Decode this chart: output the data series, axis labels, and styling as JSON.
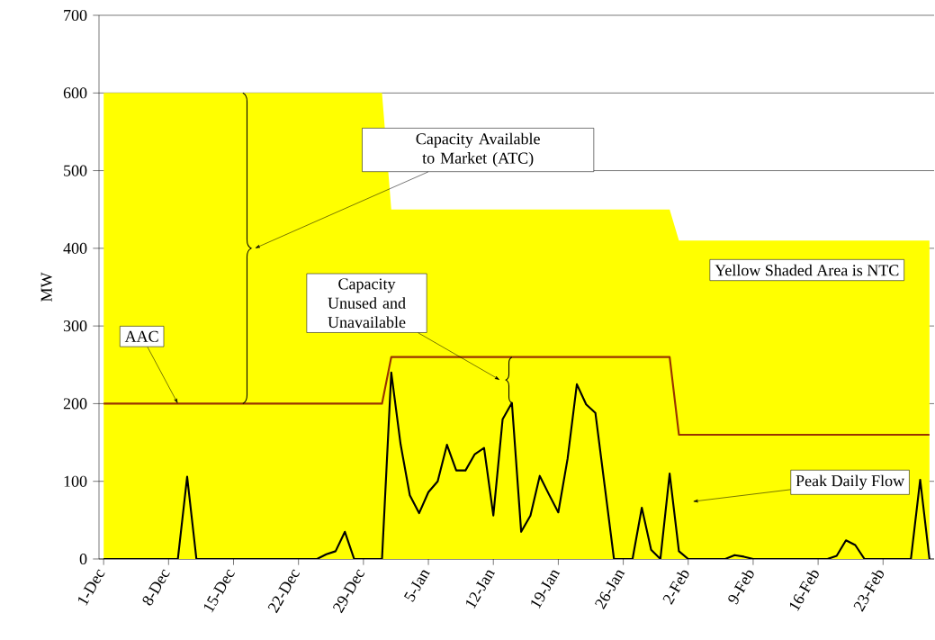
{
  "chart_data": {
    "type": "line",
    "ylabel": "MW",
    "categories": [
      "1-Dec",
      null,
      null,
      null,
      null,
      null,
      null,
      "8-Dec",
      null,
      null,
      null,
      null,
      null,
      null,
      "15-Dec",
      null,
      null,
      null,
      null,
      null,
      null,
      "22-Dec",
      null,
      null,
      null,
      null,
      null,
      null,
      "29-Dec",
      null,
      null,
      null,
      null,
      null,
      null,
      "5-Jan",
      null,
      null,
      null,
      null,
      null,
      null,
      "12-Jan",
      null,
      null,
      null,
      null,
      null,
      null,
      "19-Jan",
      null,
      null,
      null,
      null,
      null,
      null,
      "26-Jan",
      null,
      null,
      null,
      null,
      null,
      null,
      "2-Feb",
      null,
      null,
      null,
      null,
      null,
      null,
      "9-Feb",
      null,
      null,
      null,
      null,
      null,
      null,
      "16-Feb",
      null,
      null,
      null,
      null,
      null,
      null,
      "23-Feb",
      null,
      null,
      null,
      null,
      null
    ],
    "series": [
      {
        "type": "area",
        "name": "Yellow Shaded Area is NTC",
        "color": "#ffff00",
        "values": [
          600,
          600,
          600,
          600,
          600,
          600,
          600,
          600,
          600,
          600,
          600,
          600,
          600,
          600,
          600,
          600,
          600,
          600,
          600,
          600,
          600,
          600,
          600,
          600,
          600,
          600,
          600,
          600,
          600,
          600,
          600,
          450,
          450,
          450,
          450,
          450,
          450,
          450,
          450,
          450,
          450,
          450,
          450,
          450,
          450,
          450,
          450,
          450,
          450,
          450,
          450,
          450,
          450,
          450,
          450,
          450,
          450,
          450,
          450,
          450,
          450,
          450,
          410,
          410,
          410,
          410,
          410,
          410,
          410,
          410,
          410,
          410,
          410,
          410,
          410,
          410,
          410,
          410,
          410,
          410,
          410,
          410,
          410,
          410,
          410,
          410,
          410,
          410,
          410,
          410
        ]
      },
      {
        "name": "AAC",
        "color": "#993300",
        "values": [
          200,
          200,
          200,
          200,
          200,
          200,
          200,
          200,
          200,
          200,
          200,
          200,
          200,
          200,
          200,
          200,
          200,
          200,
          200,
          200,
          200,
          200,
          200,
          200,
          200,
          200,
          200,
          200,
          200,
          200,
          200,
          260,
          260,
          260,
          260,
          260,
          260,
          260,
          260,
          260,
          260,
          260,
          260,
          260,
          260,
          260,
          260,
          260,
          260,
          260,
          260,
          260,
          260,
          260,
          260,
          260,
          260,
          260,
          260,
          260,
          260,
          260,
          160,
          160,
          160,
          160,
          160,
          160,
          160,
          160,
          160,
          160,
          160,
          160,
          160,
          160,
          160,
          160,
          160,
          160,
          160,
          160,
          160,
          160,
          160,
          160,
          160,
          160,
          160,
          160
        ]
      },
      {
        "name": "Peak Daily Flow",
        "color": "#000000",
        "values": [
          0,
          0,
          0,
          0,
          0,
          0,
          0,
          0,
          0,
          106,
          0,
          0,
          0,
          0,
          0,
          0,
          0,
          0,
          0,
          0,
          0,
          0,
          0,
          0,
          6,
          10,
          35,
          0,
          0,
          0,
          0,
          240,
          148,
          82,
          59,
          86,
          100,
          147,
          114,
          114,
          135,
          143,
          56,
          180,
          201,
          35,
          56,
          107,
          83,
          60,
          129,
          225,
          199,
          188,
          94,
          0,
          0,
          0,
          66,
          12,
          0,
          110,
          10,
          0,
          0,
          0,
          0,
          0,
          5,
          3,
          0,
          0,
          0,
          0,
          0,
          0,
          0,
          0,
          0,
          4,
          24,
          18,
          0,
          0,
          0,
          0,
          0,
          0,
          102,
          0
        ]
      }
    ],
    "ylim": [
      0,
      700
    ],
    "yticks": [
      0,
      100,
      200,
      300,
      400,
      500,
      600,
      700
    ],
    "grid": "y",
    "annotations": [
      "Capacity Available to Market (ATC)",
      "Capacity Unused and Unavailable"
    ]
  }
}
